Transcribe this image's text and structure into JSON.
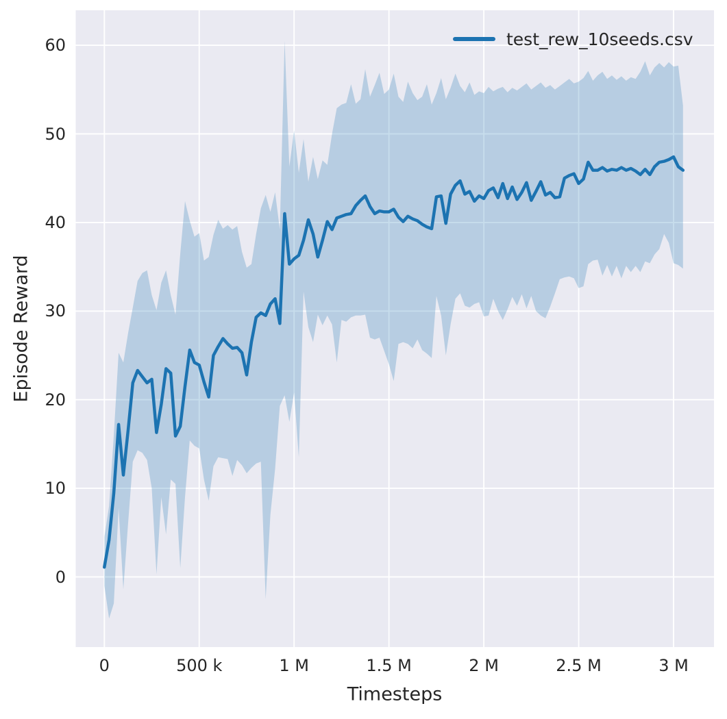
{
  "figure": {
    "background": "#ffffff",
    "plot_background": "#eaeaf2",
    "grid_color": "#ffffff",
    "text_color": "#262626"
  },
  "axes": {
    "xlabel": "Timesteps",
    "ylabel": "Episode Reward",
    "x_ticks": [
      {
        "value": 0,
        "label": "0"
      },
      {
        "value": 500,
        "label": "500 k"
      },
      {
        "value": 1000,
        "label": "1 M"
      },
      {
        "value": 1500,
        "label": "1.5 M"
      },
      {
        "value": 2000,
        "label": "2 M"
      },
      {
        "value": 2500,
        "label": "2.5 M"
      },
      {
        "value": 3000,
        "label": "3 M"
      }
    ],
    "y_ticks": [
      {
        "value": 0,
        "label": "0"
      },
      {
        "value": 10,
        "label": "10"
      },
      {
        "value": 20,
        "label": "20"
      },
      {
        "value": 30,
        "label": "30"
      },
      {
        "value": 40,
        "label": "40"
      },
      {
        "value": 50,
        "label": "50"
      },
      {
        "value": 60,
        "label": "60"
      }
    ]
  },
  "legend": {
    "label": "test_rew_10seeds.csv",
    "color": "#1c73b1"
  },
  "chart_data": {
    "type": "line",
    "title": "",
    "xlabel": "Timesteps",
    "ylabel": "Episode Reward",
    "x_unit": "kilosteps",
    "xlim_kilosteps": [
      -155,
      3215
    ],
    "ylim": [
      -7.9,
      64
    ],
    "grid": true,
    "legend_position": "upper right",
    "line_color": "#1c73b1",
    "band_color": "#1f77b4",
    "band_opacity": 0.25,
    "x_kilosteps": [
      0,
      25,
      50,
      75,
      100,
      125,
      150,
      175,
      200,
      225,
      250,
      275,
      300,
      325,
      350,
      375,
      400,
      425,
      450,
      475,
      500,
      525,
      550,
      575,
      600,
      625,
      650,
      675,
      700,
      725,
      750,
      775,
      800,
      825,
      850,
      875,
      900,
      925,
      950,
      975,
      1000,
      1025,
      1050,
      1075,
      1100,
      1125,
      1150,
      1175,
      1200,
      1225,
      1250,
      1275,
      1300,
      1325,
      1350,
      1375,
      1400,
      1425,
      1450,
      1475,
      1500,
      1525,
      1550,
      1575,
      1600,
      1625,
      1650,
      1675,
      1700,
      1725,
      1750,
      1775,
      1800,
      1825,
      1850,
      1875,
      1900,
      1925,
      1950,
      1975,
      2000,
      2025,
      2050,
      2075,
      2100,
      2125,
      2150,
      2175,
      2200,
      2225,
      2250,
      2275,
      2300,
      2325,
      2350,
      2375,
      2400,
      2425,
      2450,
      2475,
      2500,
      2525,
      2550,
      2575,
      2600,
      2625,
      2650,
      2675,
      2700,
      2725,
      2750,
      2775,
      2800,
      2825,
      2850,
      2875,
      2900,
      2925,
      2950,
      2975,
      3000,
      3025,
      3050
    ],
    "series": [
      {
        "name": "test_rew_10seeds.csv",
        "mean": [
          1.1,
          4.2,
          9.5,
          17.2,
          11.5,
          16.5,
          21.9,
          23.3,
          22.6,
          21.9,
          22.3,
          16.3,
          19.5,
          23.5,
          23.0,
          15.9,
          17.0,
          21.5,
          25.6,
          24.2,
          23.9,
          22.0,
          20.3,
          25.0,
          26.0,
          26.9,
          26.3,
          25.8,
          25.9,
          25.3,
          22.8,
          26.5,
          29.3,
          29.8,
          29.5,
          30.8,
          31.4,
          28.6,
          41.0,
          35.3,
          35.9,
          36.3,
          38.0,
          40.3,
          38.7,
          36.1,
          38.0,
          40.1,
          39.2,
          40.5,
          40.7,
          40.9,
          41.0,
          41.9,
          42.5,
          43.0,
          41.8,
          41.0,
          41.3,
          41.2,
          41.2,
          41.5,
          40.6,
          40.1,
          40.7,
          40.4,
          40.2,
          39.8,
          39.5,
          39.3,
          42.9,
          43.0,
          39.9,
          43.2,
          44.2,
          44.7,
          43.2,
          43.5,
          42.4,
          43.0,
          42.7,
          43.6,
          43.9,
          42.8,
          44.4,
          42.7,
          44.0,
          42.6,
          43.4,
          44.5,
          42.5,
          43.5,
          44.6,
          43.1,
          43.4,
          42.8,
          42.9,
          45.0,
          45.3,
          45.5,
          44.4,
          44.9,
          46.8,
          45.9,
          45.9,
          46.2,
          45.8,
          46.0,
          45.9,
          46.2,
          45.9,
          46.1,
          45.8,
          45.4,
          46.0,
          45.4,
          46.3,
          46.8,
          46.9,
          47.1,
          47.4,
          46.3,
          45.9
        ],
        "band_upper": [
          4.5,
          8.0,
          16.0,
          25.3,
          24.2,
          27.5,
          30.4,
          33.4,
          34.3,
          34.6,
          31.8,
          30.1,
          33.2,
          34.6,
          31.8,
          29.6,
          36.5,
          42.4,
          40.2,
          38.4,
          38.8,
          35.7,
          36.1,
          38.6,
          40.3,
          39.3,
          39.7,
          39.2,
          39.6,
          36.7,
          34.9,
          35.3,
          38.7,
          41.6,
          43.1,
          41.2,
          43.4,
          39.2,
          60.5,
          46.3,
          50.4,
          45.6,
          49.4,
          44.6,
          47.4,
          44.9,
          47.0,
          46.5,
          50.0,
          52.9,
          53.3,
          53.5,
          55.6,
          53.4,
          53.9,
          57.3,
          54.2,
          55.5,
          56.9,
          54.5,
          55.0,
          56.8,
          54.2,
          53.6,
          55.9,
          54.6,
          53.8,
          54.2,
          55.6,
          53.3,
          54.6,
          56.3,
          53.9,
          55.2,
          56.8,
          55.4,
          54.7,
          55.8,
          54.4,
          54.8,
          54.6,
          55.3,
          54.8,
          55.1,
          55.3,
          54.7,
          55.2,
          54.9,
          55.3,
          55.7,
          55.0,
          55.4,
          55.8,
          55.2,
          55.5,
          55.0,
          55.4,
          55.8,
          56.2,
          55.7,
          55.9,
          56.3,
          57.1,
          56.0,
          56.6,
          57.0,
          56.2,
          56.6,
          56.1,
          56.5,
          56.0,
          56.4,
          56.2,
          57.0,
          58.2,
          56.6,
          57.5,
          58.0,
          57.5,
          58.1,
          57.6,
          57.7,
          53.2
        ],
        "band_lower": [
          -1.0,
          -4.7,
          -3.0,
          7.8,
          -1.4,
          6.0,
          13.0,
          14.3,
          14.0,
          13.2,
          10.0,
          0.3,
          9.0,
          4.8,
          11.0,
          10.5,
          1.0,
          9.0,
          15.4,
          14.8,
          14.5,
          11.0,
          8.6,
          12.5,
          13.5,
          13.4,
          13.3,
          11.4,
          13.2,
          12.6,
          11.7,
          12.3,
          12.8,
          13.0,
          -2.5,
          7.0,
          12.2,
          19.3,
          20.5,
          17.5,
          20.8,
          13.5,
          32.2,
          28.2,
          26.5,
          29.6,
          28.4,
          29.5,
          28.5,
          24.2,
          29.0,
          28.8,
          29.3,
          29.5,
          29.5,
          29.6,
          27.0,
          26.8,
          27.0,
          25.5,
          24.0,
          22.1,
          26.3,
          26.5,
          26.3,
          25.8,
          26.8,
          25.6,
          25.2,
          24.7,
          31.7,
          29.5,
          25.0,
          28.5,
          31.4,
          32.0,
          30.6,
          30.4,
          30.8,
          31.0,
          29.4,
          29.5,
          31.4,
          30.0,
          29.0,
          30.2,
          31.6,
          30.6,
          31.9,
          30.3,
          31.7,
          30.0,
          29.5,
          29.2,
          30.5,
          32.0,
          33.6,
          33.8,
          33.9,
          33.7,
          32.6,
          32.8,
          35.3,
          35.7,
          35.8,
          34.0,
          35.2,
          33.9,
          35.1,
          33.7,
          35.1,
          34.4,
          35.1,
          34.4,
          35.6,
          35.4,
          36.4,
          37.0,
          38.7,
          37.7,
          35.4,
          35.2,
          34.8
        ]
      }
    ]
  }
}
